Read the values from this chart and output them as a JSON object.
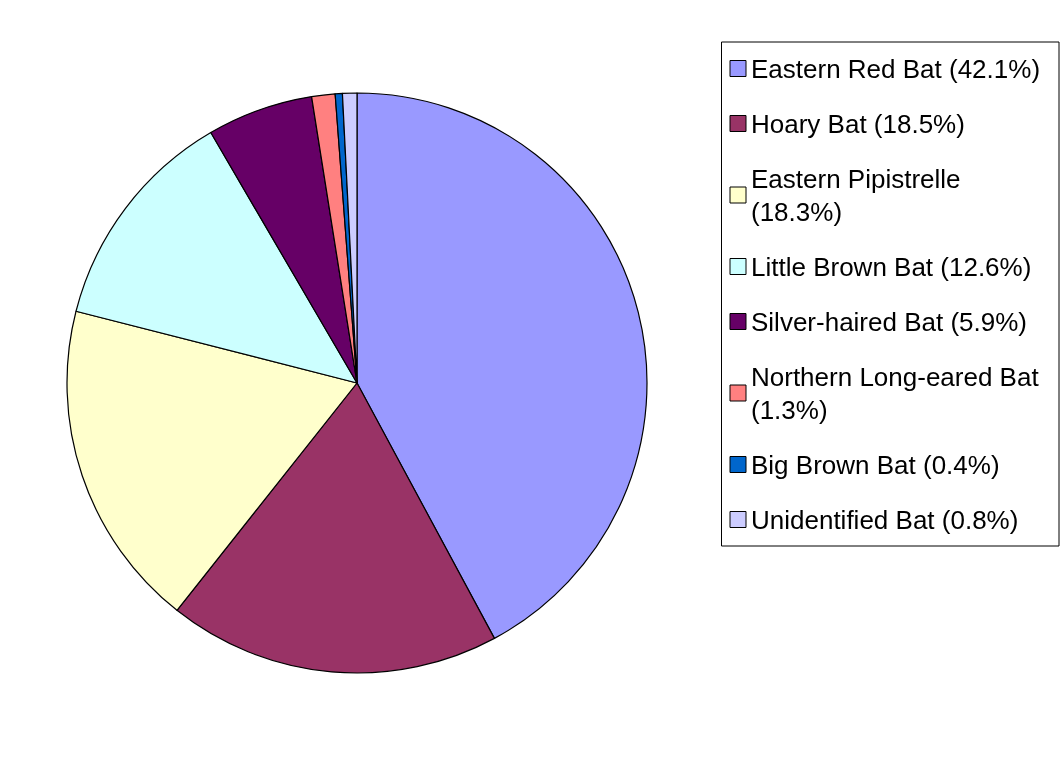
{
  "chart_data": {
    "type": "pie",
    "categories": [
      "Eastern Red Bat (42.1%)",
      "Hoary Bat (18.5%)",
      "Eastern Pipistrelle (18.3%)",
      "Little Brown Bat (12.6%)",
      "Silver-haired Bat (5.9%)",
      "Northern Long-eared Bat (1.3%)",
      "Big Brown Bat (0.4%)",
      "Unidentified Bat (0.8%)"
    ],
    "values": [
      42.1,
      18.5,
      18.3,
      12.6,
      5.9,
      1.3,
      0.4,
      0.8
    ],
    "colors": [
      "#9999ff",
      "#993366",
      "#ffffcc",
      "#ccffff",
      "#660066",
      "#ff8080",
      "#0066cc",
      "#ccccff"
    ],
    "legend": "right"
  }
}
